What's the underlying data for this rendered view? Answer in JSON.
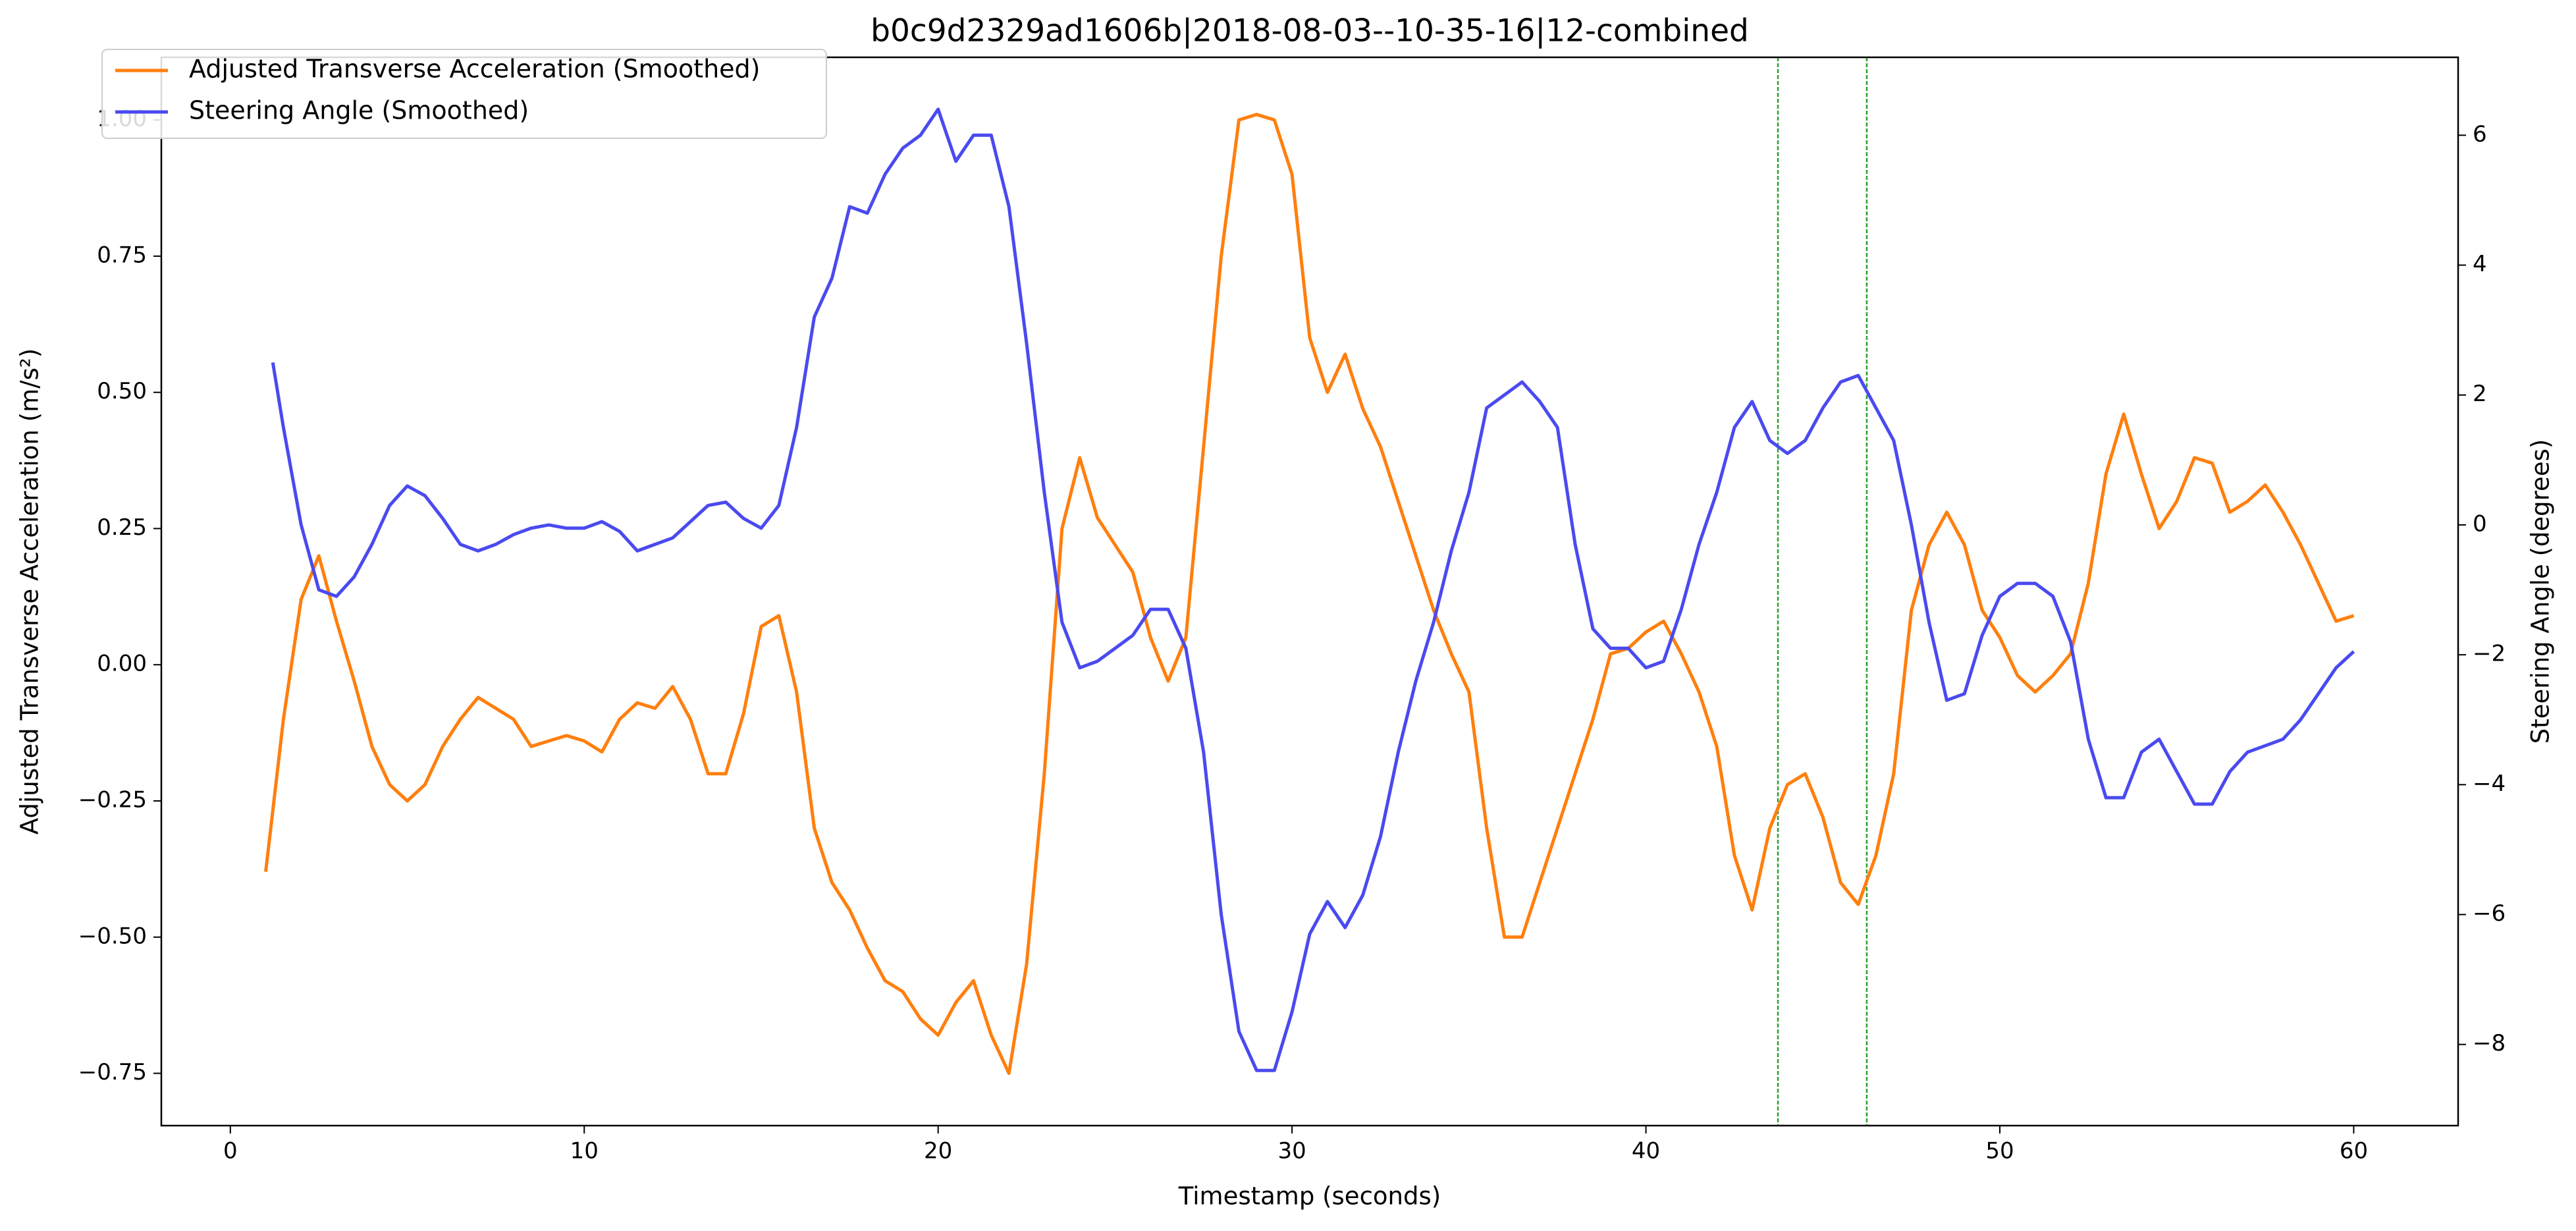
{
  "chart_data": {
    "type": "line",
    "title": "b0c9d2329ad1606b|2018-08-03--10-35-16|12-combined",
    "x_label": "Timestamp (seconds)",
    "y_label": "Adjusted Transverse Acceleration (m/s²)",
    "y2_label": "Steering Angle (degrees)",
    "y_label_color": "#ff7f0e",
    "y2_label_color": "#0000ee",
    "legend": "upper left",
    "grid": false,
    "xlim": [
      -1.95,
      62.95
    ],
    "xticks": [
      0,
      10,
      20,
      30,
      40,
      50,
      60
    ],
    "ylim": [
      -0.846,
      1.115
    ],
    "yticks": [
      {
        "value": -0.75,
        "label": "−0.75"
      },
      {
        "value": -0.5,
        "label": "−0.50"
      },
      {
        "value": -0.25,
        "label": "−0.25"
      },
      {
        "value": 0,
        "label": "0.00"
      },
      0.25,
      {
        "value": 0.5,
        "label": "0.50"
      },
      0.75,
      {
        "value": 1,
        "label": "1.00"
      }
    ],
    "y2lim": [
      -9.25,
      7.2
    ],
    "y2ticks": [
      {
        "value": -8,
        "label": "−8"
      },
      {
        "value": -6,
        "label": "−6"
      },
      {
        "value": -4,
        "label": "−4"
      },
      {
        "value": -2,
        "label": "−2"
      },
      0,
      2,
      4,
      6
    ],
    "vlines": [
      43.73,
      46.24
    ],
    "vline_color": "#2ca02c",
    "series": [
      {
        "name": "Adjusted Transverse Acceleration (Smoothed)",
        "color": "#ff7f0e",
        "axis": "y",
        "x": [
          1.0,
          1.5,
          2.0,
          2.5,
          3.0,
          3.5,
          4.0,
          4.5,
          5.0,
          5.5,
          6.0,
          6.5,
          7.0,
          7.5,
          8.0,
          8.5,
          9.0,
          9.5,
          10.0,
          10.5,
          11.0,
          11.5,
          12.0,
          12.5,
          13.0,
          13.5,
          14.0,
          14.5,
          15.0,
          15.5,
          16.0,
          16.5,
          17.0,
          17.5,
          18.0,
          18.5,
          19.0,
          19.5,
          20.0,
          20.5,
          21.0,
          21.5,
          22.0,
          22.5,
          23.0,
          23.5,
          24.0,
          24.5,
          25.0,
          25.5,
          26.0,
          26.5,
          27.0,
          27.5,
          28.0,
          28.5,
          29.0,
          29.5,
          30.0,
          30.5,
          31.0,
          31.5,
          32.0,
          32.5,
          33.0,
          33.5,
          34.0,
          34.5,
          35.0,
          35.5,
          36.0,
          36.5,
          37.0,
          37.5,
          38.0,
          38.5,
          39.0,
          39.5,
          40.0,
          40.5,
          41.0,
          41.5,
          42.0,
          42.5,
          43.0,
          43.5,
          44.0,
          44.5,
          45.0,
          45.5,
          46.0,
          46.5,
          47.0,
          47.5,
          48.0,
          48.5,
          49.0,
          49.5,
          50.0,
          50.5,
          51.0,
          51.5,
          52.0,
          52.5,
          53.0,
          53.5,
          54.0,
          54.5,
          55.0,
          55.5,
          56.0,
          56.5,
          57.0,
          57.5,
          58.0,
          58.5,
          59.0,
          59.5,
          60.0
        ],
        "values": [
          -0.38,
          -0.1,
          0.12,
          0.2,
          0.08,
          -0.03,
          -0.15,
          -0.22,
          -0.25,
          -0.22,
          -0.15,
          -0.1,
          -0.06,
          -0.08,
          -0.1,
          -0.15,
          -0.14,
          -0.13,
          -0.14,
          -0.16,
          -0.1,
          -0.07,
          -0.08,
          -0.04,
          -0.1,
          -0.2,
          -0.2,
          -0.09,
          0.07,
          0.09,
          -0.05,
          -0.3,
          -0.4,
          -0.45,
          -0.52,
          -0.58,
          -0.6,
          -0.65,
          -0.68,
          -0.62,
          -0.58,
          -0.68,
          -0.75,
          -0.55,
          -0.2,
          0.25,
          0.38,
          0.27,
          0.22,
          0.17,
          0.05,
          -0.03,
          0.05,
          0.4,
          0.75,
          1.0,
          1.01,
          1.0,
          0.9,
          0.6,
          0.5,
          0.57,
          0.47,
          0.4,
          0.3,
          0.2,
          0.1,
          0.02,
          -0.05,
          -0.3,
          -0.5,
          -0.5,
          -0.4,
          -0.3,
          -0.2,
          -0.1,
          0.02,
          0.03,
          0.06,
          0.08,
          0.02,
          -0.05,
          -0.15,
          -0.35,
          -0.45,
          -0.3,
          -0.22,
          -0.2,
          -0.28,
          -0.4,
          -0.44,
          -0.35,
          -0.2,
          0.1,
          0.22,
          0.28,
          0.22,
          0.1,
          0.05,
          -0.02,
          -0.05,
          -0.02,
          0.02,
          0.15,
          0.35,
          0.46,
          0.35,
          0.25,
          0.3,
          0.38,
          0.37,
          0.28,
          0.3,
          0.33,
          0.28,
          0.22,
          0.15,
          0.08,
          0.09
        ]
      },
      {
        "name": "Steering Angle (Smoothed)",
        "color": "#4a4af0",
        "axis": "y2",
        "x": [
          1.2,
          1.5,
          2.0,
          2.5,
          3.0,
          3.5,
          4.0,
          4.5,
          5.0,
          5.5,
          6.0,
          6.5,
          7.0,
          7.5,
          8.0,
          8.5,
          9.0,
          9.5,
          10.0,
          10.5,
          11.0,
          11.5,
          12.0,
          12.5,
          13.0,
          13.5,
          14.0,
          14.5,
          15.0,
          15.5,
          16.0,
          16.5,
          17.0,
          17.5,
          18.0,
          18.5,
          19.0,
          19.5,
          20.0,
          20.5,
          21.0,
          21.5,
          22.0,
          22.5,
          23.0,
          23.5,
          24.0,
          24.5,
          25.0,
          25.5,
          26.0,
          26.5,
          27.0,
          27.5,
          28.0,
          28.5,
          29.0,
          29.5,
          30.0,
          30.5,
          31.0,
          31.5,
          32.0,
          32.5,
          33.0,
          33.5,
          34.0,
          34.5,
          35.0,
          35.5,
          36.0,
          36.5,
          37.0,
          37.5,
          38.0,
          38.5,
          39.0,
          39.5,
          40.0,
          40.5,
          41.0,
          41.5,
          42.0,
          42.5,
          43.0,
          43.5,
          44.0,
          44.5,
          45.0,
          45.5,
          46.0,
          46.5,
          47.0,
          47.5,
          48.0,
          48.5,
          49.0,
          49.5,
          50.0,
          50.5,
          51.0,
          51.5,
          52.0,
          52.5,
          53.0,
          53.5,
          54.0,
          54.5,
          55.0,
          55.5,
          56.0,
          56.5,
          57.0,
          57.5,
          58.0,
          58.5,
          59.0,
          59.5,
          60.0
        ],
        "values": [
          2.5,
          1.5,
          0,
          -1.0,
          -1.1,
          -0.8,
          -0.3,
          0.3,
          0.6,
          0.45,
          0.1,
          -0.3,
          -0.4,
          -0.3,
          -0.15,
          -0.05,
          0,
          -0.05,
          -0.05,
          0.05,
          -0.1,
          -0.4,
          -0.3,
          -0.2,
          0.05,
          0.3,
          0.35,
          0.1,
          -0.05,
          0.3,
          1.5,
          3.2,
          3.8,
          4.9,
          4.8,
          5.4,
          5.8,
          6.0,
          6.4,
          5.6,
          6.0,
          6.0,
          4.9,
          2.8,
          0.5,
          -1.5,
          -2.2,
          -2.1,
          -1.9,
          -1.7,
          -1.3,
          -1.3,
          -1.9,
          -3.5,
          -6.0,
          -7.8,
          -8.4,
          -8.4,
          -7.5,
          -6.3,
          -5.8,
          -6.2,
          -5.7,
          -4.8,
          -3.5,
          -2.4,
          -1.5,
          -0.4,
          0.5,
          1.8,
          2.0,
          2.2,
          1.9,
          1.5,
          -0.3,
          -1.6,
          -1.9,
          -1.9,
          -2.2,
          -2.1,
          -1.3,
          -0.3,
          0.5,
          1.5,
          1.9,
          1.3,
          1.1,
          1.3,
          1.8,
          2.2,
          2.3,
          1.8,
          1.3,
          0,
          -1.5,
          -2.7,
          -2.6,
          -1.7,
          -1.1,
          -0.9,
          -0.9,
          -1.1,
          -1.8,
          -3.3,
          -4.2,
          -4.2,
          -3.5,
          -3.3,
          -3.8,
          -4.3,
          -4.3,
          -3.8,
          -3.5,
          -3.4,
          -3.3,
          -3.0,
          -2.6,
          -2.2,
          -1.95
        ]
      }
    ]
  }
}
